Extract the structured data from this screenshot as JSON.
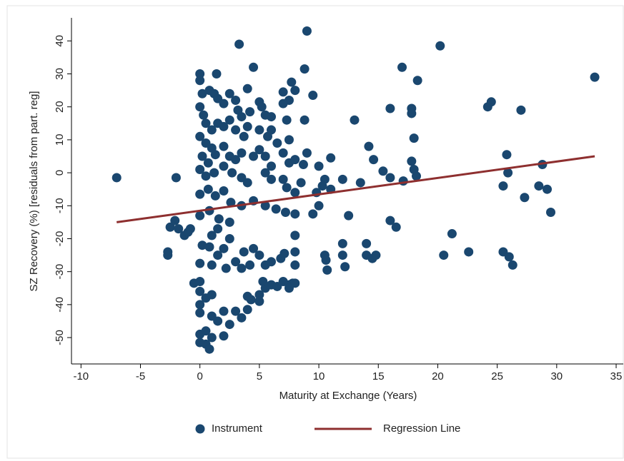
{
  "chart_data": {
    "type": "scatter",
    "x_label": "Maturity at Exchange (Years)",
    "y_label": "SZ Recovery (%) [residuals from part. reg]",
    "xlim": [
      -10.8,
      35.6
    ],
    "ylim": [
      -58,
      47
    ],
    "xticks": [
      -10,
      -5,
      0,
      5,
      10,
      15,
      20,
      25,
      30,
      35
    ],
    "yticks": [
      -50,
      -40,
      -30,
      -20,
      -10,
      0,
      10,
      20,
      30,
      40
    ],
    "grid": false,
    "legend": "bottom",
    "series": [
      {
        "name": "Instrument",
        "type": "scatter",
        "color": "#1a476f",
        "x": [
          -7,
          -2,
          -2.7,
          -2.7,
          -2.5,
          -2.1,
          -1.8,
          -1.3,
          -1,
          -0.8,
          -0.5,
          9,
          3.3,
          4.5,
          8.8,
          20.2,
          17,
          18.3,
          33.2,
          24.5,
          24.2,
          27,
          16,
          17.8,
          17.8,
          13,
          18,
          14.2,
          14.6,
          17.8,
          15.4,
          16,
          17.1,
          18,
          18.2,
          13.5,
          12,
          11,
          10,
          10.5,
          9.8,
          10,
          10.3,
          11,
          9.5,
          12.5,
          16,
          16.5,
          21.2,
          20.5,
          22.6,
          25.5,
          26,
          26.3,
          25.8,
          25.9,
          25.5,
          27.3,
          28.5,
          29.2,
          28.8,
          29.5,
          12,
          12,
          12.2,
          10.5,
          10.6,
          10.7,
          14,
          14,
          14.5,
          14.8,
          9.5,
          9,
          8.8,
          8,
          8,
          8,
          7.8,
          7,
          7.5,
          8,
          7.5,
          0,
          0,
          1.4,
          0.2,
          0.8,
          1.2,
          1.5,
          2.5,
          2,
          3,
          3.2,
          4,
          4.2,
          3.5,
          5,
          5.2,
          5.5,
          6,
          7,
          7.5,
          7.7,
          8,
          7,
          7.3,
          7.5,
          0,
          0.3,
          0.5,
          1,
          1.5,
          2,
          2.5,
          3,
          3.7,
          4,
          5,
          5.7,
          6,
          0,
          0.5,
          1,
          0.2,
          0.7,
          1.3,
          2,
          2.5,
          3,
          3.5,
          4.5,
          5,
          5.5,
          6.5,
          7,
          7.5,
          8,
          6,
          5.5,
          6,
          7,
          7.3,
          8,
          8.5,
          8.7,
          0,
          0.5,
          1.2,
          2,
          2.7,
          3.5,
          4,
          0,
          0.7,
          1.3,
          2,
          2.6,
          3.5,
          4.5,
          5.5,
          6.4,
          7.2,
          8,
          0,
          0.8,
          1.6,
          2.5,
          1,
          1.5,
          2.5,
          0.2,
          0.8,
          1.5,
          2,
          3,
          3.7,
          4.5,
          5,
          5.5,
          6,
          6.8,
          7.1,
          0,
          1,
          2.2,
          3.5,
          4.2,
          0,
          0,
          0.5,
          1,
          0,
          0,
          1,
          2,
          3,
          4,
          1.5,
          2.5,
          3.5,
          0,
          0.5,
          1,
          2,
          0.5,
          0.8,
          0,
          4.3,
          5,
          5.5,
          6,
          5,
          4,
          6.5,
          5.3
        ],
        "values": [
          -1.5,
          -1.5,
          -25,
          -24,
          -16.5,
          -14.5,
          -17,
          -19,
          -18,
          -17,
          -33.5,
          43,
          39,
          32,
          31.5,
          38.5,
          32,
          28,
          29,
          21.5,
          20,
          19,
          19.5,
          19.5,
          18,
          16,
          10.5,
          8,
          4,
          3.5,
          0.5,
          -1.5,
          -2.5,
          1,
          -1,
          -3,
          -2,
          4.5,
          2,
          -2,
          -6,
          -10,
          -4,
          -5,
          -12.5,
          -13,
          -14.5,
          -16.5,
          -18.5,
          -25,
          -24,
          -24,
          -25.5,
          -28,
          5.5,
          0,
          -4,
          -7.5,
          -4,
          -5,
          2.5,
          -12,
          -21.5,
          -25,
          -28.5,
          -25,
          -26.5,
          -29.5,
          -21.5,
          -25,
          -26,
          -25,
          23.5,
          6,
          16,
          -19,
          -24,
          -28,
          -33.5,
          -33,
          -34,
          -33.5,
          -35,
          30,
          28,
          30,
          24,
          25,
          24,
          22.5,
          24,
          21,
          22,
          19,
          25.5,
          18.5,
          17,
          21.5,
          20,
          17.5,
          17,
          24.5,
          22,
          27.5,
          25,
          21,
          16,
          10,
          20,
          17.5,
          15,
          13,
          15,
          14,
          16,
          13,
          11,
          14,
          13,
          11,
          13,
          11,
          9,
          7.5,
          5,
          3,
          5.5,
          8,
          5,
          4,
          6,
          5,
          7,
          5,
          9,
          6,
          3,
          4,
          2,
          0,
          -2,
          -2,
          -4.5,
          -6,
          -3,
          2.5,
          1,
          -1,
          0,
          2,
          0,
          -1.5,
          -3,
          -6.5,
          -5,
          -7,
          -5.5,
          -9,
          -10,
          -8.5,
          -10,
          -11,
          -12,
          -12.5,
          -13,
          -11.5,
          -14,
          -15,
          -19,
          -17,
          -20,
          -22,
          -22.5,
          -25,
          -23,
          -27,
          -24,
          -23,
          -25,
          -28,
          -27,
          -26,
          -24.5,
          -27.5,
          -28,
          -29,
          -29,
          -28,
          -33,
          -36,
          -38,
          -37,
          -40,
          -42.5,
          -43.5,
          -42,
          -42,
          -41.5,
          -45,
          -46,
          -44,
          -49,
          -48,
          -50,
          -49.5,
          -52,
          -53.5,
          -51.5,
          -38.5,
          -37,
          -35,
          -34,
          -39,
          -37.5,
          -34.5,
          -33
        ]
      },
      {
        "name": "Regression Line",
        "type": "line",
        "color": "#8e2f2f",
        "x": [
          -7,
          33.2
        ],
        "values": [
          -15,
          5
        ]
      }
    ]
  }
}
